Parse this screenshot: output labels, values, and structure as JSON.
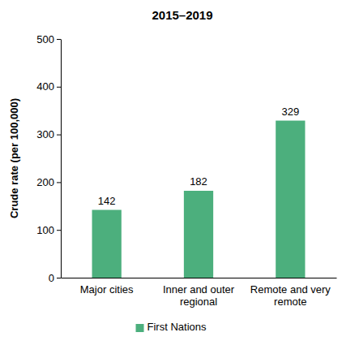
{
  "chart_data": {
    "type": "bar",
    "title": "2015–2019",
    "ylabel": "Crude rate (per 100,000)",
    "categories": [
      "Major cities",
      "Inner and outer regional",
      "Remote and very remote"
    ],
    "series": [
      {
        "name": "First Nations",
        "color": "#4caf7d",
        "values": [
          142,
          182,
          329
        ]
      }
    ],
    "ylim": [
      0,
      500
    ],
    "yticks": [
      0,
      100,
      200,
      300,
      400,
      500
    ],
    "grid": false,
    "legend": "bottom",
    "data_labels": true
  }
}
